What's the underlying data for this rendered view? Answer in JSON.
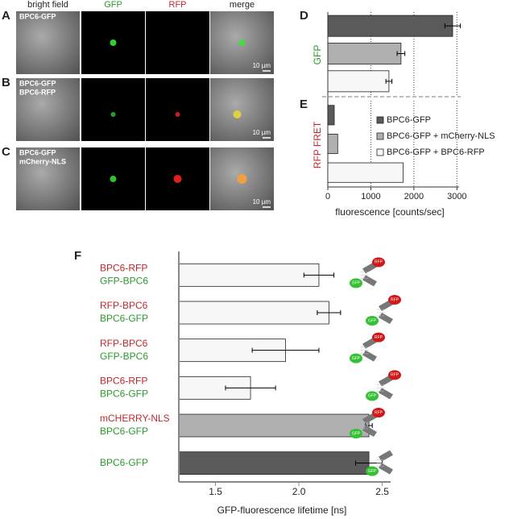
{
  "figure": {
    "panel_labels": [
      "A",
      "B",
      "C",
      "D",
      "E",
      "F"
    ],
    "column_headers": [
      "bright field",
      "GFP",
      "RFP",
      "merge"
    ],
    "row_labels": [
      [
        "BPC6-GFP"
      ],
      [
        "BPC6-GFP",
        "BPC6-RFP"
      ],
      [
        "BPC6-GFP",
        "mCherry-NLS"
      ]
    ],
    "scale_bar": "10 µm",
    "diagram_labels": {
      "gfp": "GFP",
      "rfp": "RFP"
    }
  },
  "chart_data": [
    {
      "type": "bar",
      "ylabel": "GFP",
      "values": [
        2900,
        1700,
        1420
      ],
      "errors": [
        180,
        90,
        70
      ],
      "colors": [
        "#5a5a5a",
        "#b0b0b0",
        "#f7f7f7"
      ],
      "xlim": [
        0,
        3050
      ],
      "xticks": [
        0,
        1000,
        2000,
        3000
      ],
      "grid": true
    },
    {
      "type": "bar",
      "ylabel": "RFP FRET",
      "xlabel": "fluorescence [counts/sec]",
      "series": [
        {
          "name": "BPC6-GFP",
          "color": "#5a5a5a",
          "values": [
            150
          ]
        },
        {
          "name": "BPC6-GFP + mCherry-NLS",
          "color": "#b0b0b0",
          "values": [
            230
          ]
        },
        {
          "name": "BPC6-GFP + BPC6-RFP",
          "color": "#f7f7f7",
          "values": [
            1750
          ]
        }
      ],
      "legend": "upper right",
      "xlim": [
        0,
        3050
      ],
      "xticks": [
        0,
        1000,
        2000,
        3000
      ],
      "grid": true
    },
    {
      "type": "bar",
      "xlabel": "GFP-fluorescence lifetime [ns]",
      "categories": [
        [
          "BPC6-RFP",
          "GFP-BPC6"
        ],
        [
          "RFP-BPC6",
          "BPC6-GFP"
        ],
        [
          "RFP-BPC6",
          "GFP-BPC6"
        ],
        [
          "BPC6-RFP",
          "BPC6-GFP"
        ],
        [
          "mCHERRY-NLS",
          "BPC6-GFP"
        ],
        [
          "BPC6-GFP"
        ]
      ],
      "values": [
        2.12,
        2.18,
        1.92,
        1.71,
        2.42,
        2.42
      ],
      "errors": [
        0.09,
        0.07,
        0.2,
        0.15,
        0.02,
        0.08
      ],
      "colors": [
        "#f7f7f7",
        "#f7f7f7",
        "#f7f7f7",
        "#f7f7f7",
        "#b0b0b0",
        "#5a5a5a"
      ],
      "xlim": [
        1.28,
        2.55
      ],
      "xticks": [
        1.5,
        {
          "value": 2,
          "label": "2.0"
        },
        2.5
      ]
    }
  ]
}
